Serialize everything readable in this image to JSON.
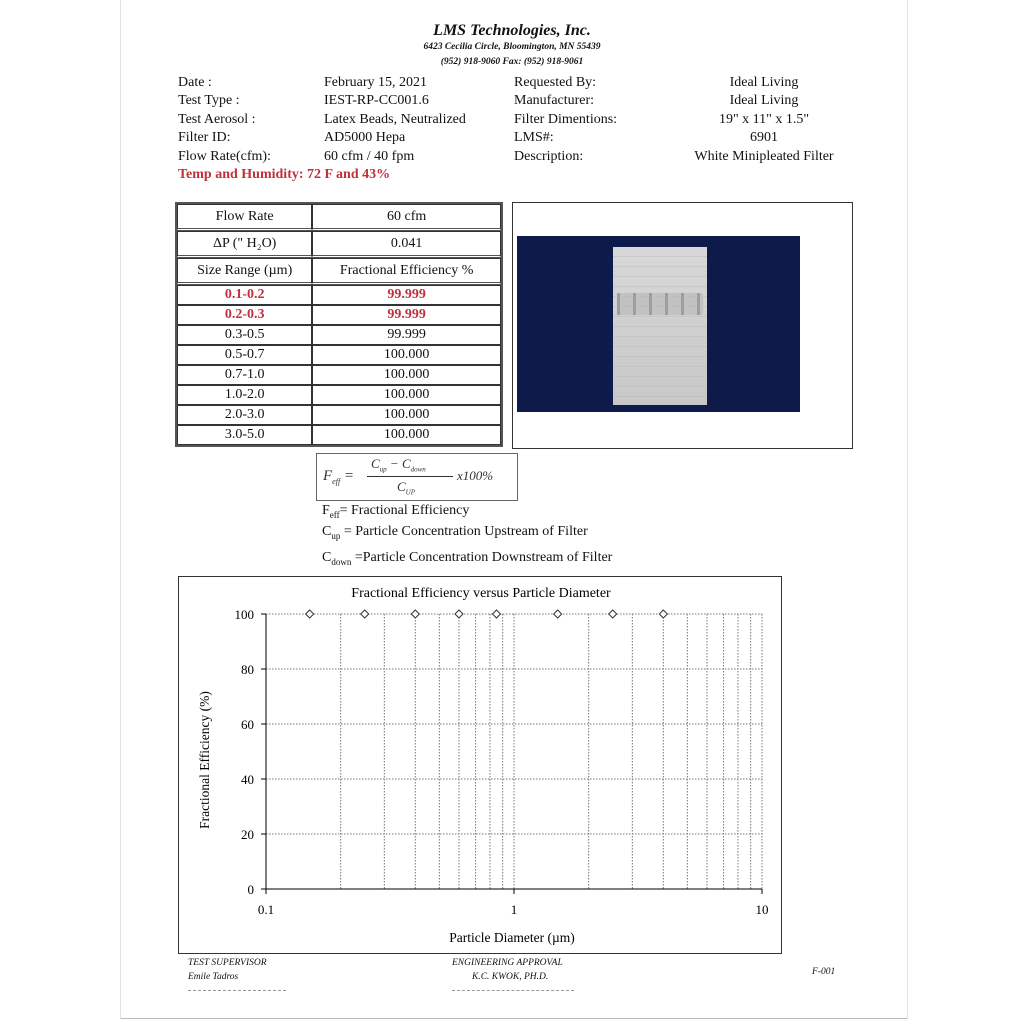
{
  "header": {
    "company": "LMS Technologies, Inc.",
    "address": "6423 Cecilia Circle, Bloomington, MN 55439",
    "phone": "(952) 918-9060  Fax: (952) 918-9061"
  },
  "info_left": [
    {
      "label": "Date :",
      "value": "February 15, 2021"
    },
    {
      "label": "Test Type :",
      "value": "IEST-RP-CC001.6"
    },
    {
      "label": "Test Aerosol :",
      "value": "Latex Beads, Neutralized"
    },
    {
      "label": "Filter ID:",
      "value": "AD5000 Hepa"
    },
    {
      "label": "Flow Rate(cfm):",
      "value": "60 cfm / 40 fpm"
    }
  ],
  "info_right": [
    {
      "label": "Requested By:",
      "value": "Ideal Living"
    },
    {
      "label": "Manufacturer:",
      "value": "Ideal Living"
    },
    {
      "label": "Filter Dimentions:",
      "value": "19\" x 11\" x 1.5\""
    },
    {
      "label": "LMS#:",
      "value": "6901"
    },
    {
      "label": "Description:",
      "value": "White Minipleated Filter"
    }
  ],
  "temp": {
    "label": "Temp and Humidity:",
    "value": "72 F and 43%"
  },
  "table": {
    "flow_label": "Flow Rate",
    "flow_value": "60 cfm",
    "dp_label": "ΔP (\" H₂O)",
    "dp_value": "0.041",
    "col1": "Size Range (µm)",
    "col2": "Fractional Efficiency %",
    "rows": [
      {
        "range": "0.1-0.2",
        "eff": "99.999",
        "highlight": true
      },
      {
        "range": "0.2-0.3",
        "eff": "99.999",
        "highlight": true
      },
      {
        "range": "0.3-0.5",
        "eff": "99.999"
      },
      {
        "range": "0.5-0.7",
        "eff": "100.000"
      },
      {
        "range": "0.7-1.0",
        "eff": "100.000"
      },
      {
        "range": "1.0-2.0",
        "eff": "100.000"
      },
      {
        "range": "2.0-3.0",
        "eff": "100.000"
      },
      {
        "range": "3.0-5.0",
        "eff": "100.000"
      }
    ]
  },
  "formula": {
    "lhs": "F",
    "lhs_sub": "eff",
    "num_a": "C",
    "num_a_sub": "up",
    "minus": "− C",
    "num_b_sub": "down",
    "den": "C",
    "den_sub": "UP",
    "tail": "x100%"
  },
  "legend": [
    {
      "sym": "F",
      "sub": "eff",
      "text": "= Fractional Efficiency"
    },
    {
      "sym": "C",
      "sub": "up",
      "text": " = Particle Concentration Upstream of Filter"
    },
    {
      "sym": "C",
      "sub": "down",
      "text": " =Particle Concentration Downstream of Filter"
    }
  ],
  "chart_data": {
    "type": "scatter",
    "title": "Fractional Efficiency versus Particle Diameter",
    "xlabel": "Particle Diameter (µm)",
    "ylabel": "Fractional Efficiency (%)",
    "xscale": "log",
    "xlim": [
      0.1,
      10
    ],
    "ylim": [
      0,
      100
    ],
    "xticks": [
      "0.1",
      "1",
      "10"
    ],
    "yticks": [
      "0",
      "20",
      "40",
      "60",
      "80",
      "100"
    ],
    "grid": true,
    "x": [
      0.15,
      0.25,
      0.4,
      0.6,
      0.85,
      1.5,
      2.5,
      4.0
    ],
    "y": [
      99.999,
      99.999,
      99.999,
      100,
      100,
      100,
      100,
      100
    ],
    "marker": "diamond-open"
  },
  "footer": {
    "sup_title": "TEST SUPERVISOR",
    "sup_name": "Emile Tadros",
    "eng_title": "ENGINEERING APPROVAL",
    "eng_name": "K.C. KWOK, PH.D.",
    "form": "F-001"
  },
  "colors": {
    "highlight": "#c0303a",
    "photo_bg": "#0e1a4a"
  }
}
